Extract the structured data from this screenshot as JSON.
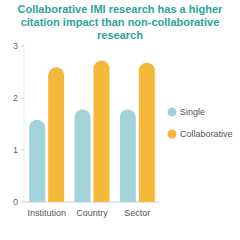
{
  "chart_data": {
    "type": "bar",
    "title": "Collaborative IMI research has a higher citation impact than non-collaborative research",
    "categories": [
      "Institution",
      "Country",
      "Sector"
    ],
    "series": [
      {
        "name": "Single",
        "color": "#a3d2d8",
        "values": [
          1.58,
          1.78,
          1.78
        ]
      },
      {
        "name": "Collaborative",
        "color": "#f5b93a",
        "values": [
          2.59,
          2.72,
          2.68
        ]
      }
    ],
    "ylim": [
      0,
      3
    ],
    "yticks": [
      0,
      1,
      2,
      3
    ],
    "grid": false,
    "legend": "right"
  }
}
